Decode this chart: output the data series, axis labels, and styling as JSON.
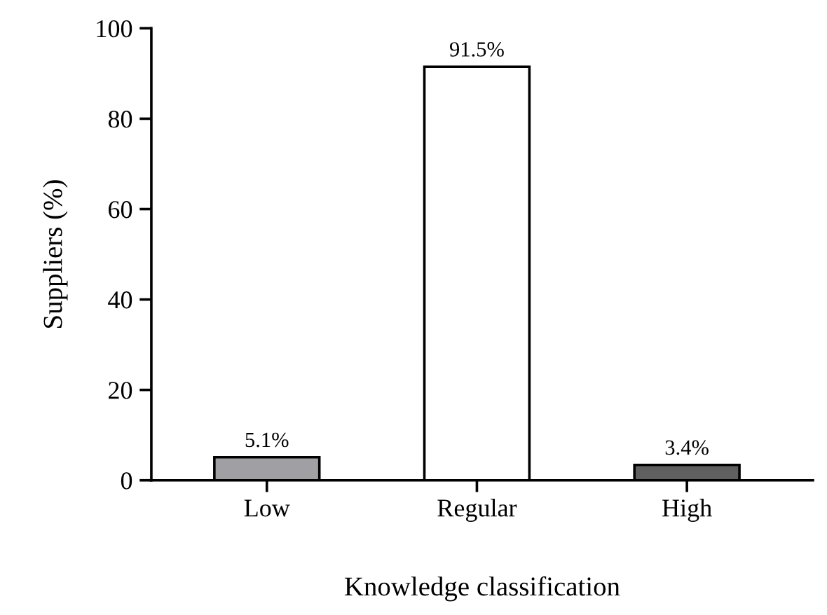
{
  "chart_data": {
    "type": "bar",
    "xlabel": "Knowledge classification",
    "ylabel": "Suppliers (%)",
    "categories": [
      "Low",
      "Regular",
      "High"
    ],
    "values": [
      5.1,
      91.5,
      3.4
    ],
    "colors": [
      "#a0a0a4",
      "#ffffff",
      "#606060"
    ],
    "value_labels": [
      "5.1%",
      "91.5%",
      "3.4%"
    ],
    "ylim": [
      0,
      100
    ],
    "yticks": [
      0,
      20,
      40,
      60,
      80,
      100
    ],
    "grid": false,
    "legend": false
  }
}
